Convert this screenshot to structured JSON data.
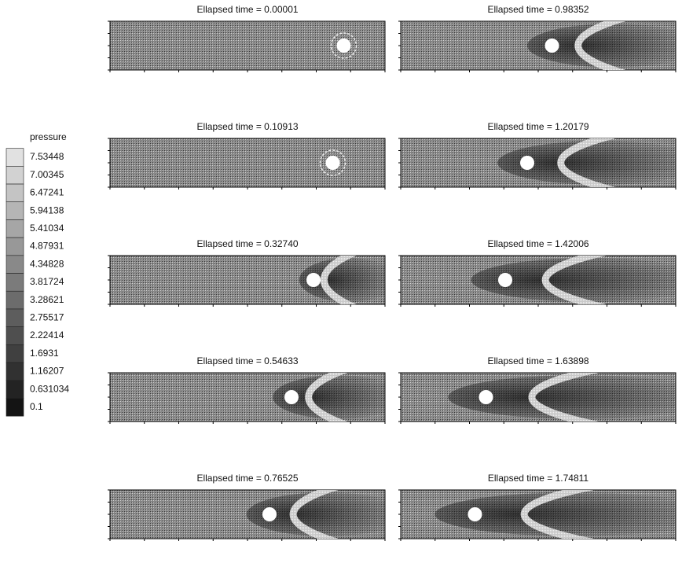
{
  "legend": {
    "title": "pressure",
    "labels": [
      "7.53448",
      "7.00345",
      "6.47241",
      "5.94138",
      "5.41034",
      "4.87931",
      "4.34828",
      "3.81724",
      "3.28621",
      "2.75517",
      "2.22414",
      "1.6931",
      "1.16207",
      "0.631034",
      "0.1"
    ]
  },
  "panels": [
    {
      "title": "Ellapsed time = 0.00001"
    },
    {
      "title": "Ellapsed time = 0.98352"
    },
    {
      "title": "Ellapsed time = 0.10913"
    },
    {
      "title": "Ellapsed time = 1.20179"
    },
    {
      "title": "Ellapsed time = 0.32740"
    },
    {
      "title": "Ellapsed time = 1.42006"
    },
    {
      "title": "Ellapsed time = 0.54633"
    },
    {
      "title": "Ellapsed time = 1.63898"
    },
    {
      "title": "Ellapsed time = 0.76525"
    },
    {
      "title": "Ellapsed time = 1.74811"
    }
  ]
}
